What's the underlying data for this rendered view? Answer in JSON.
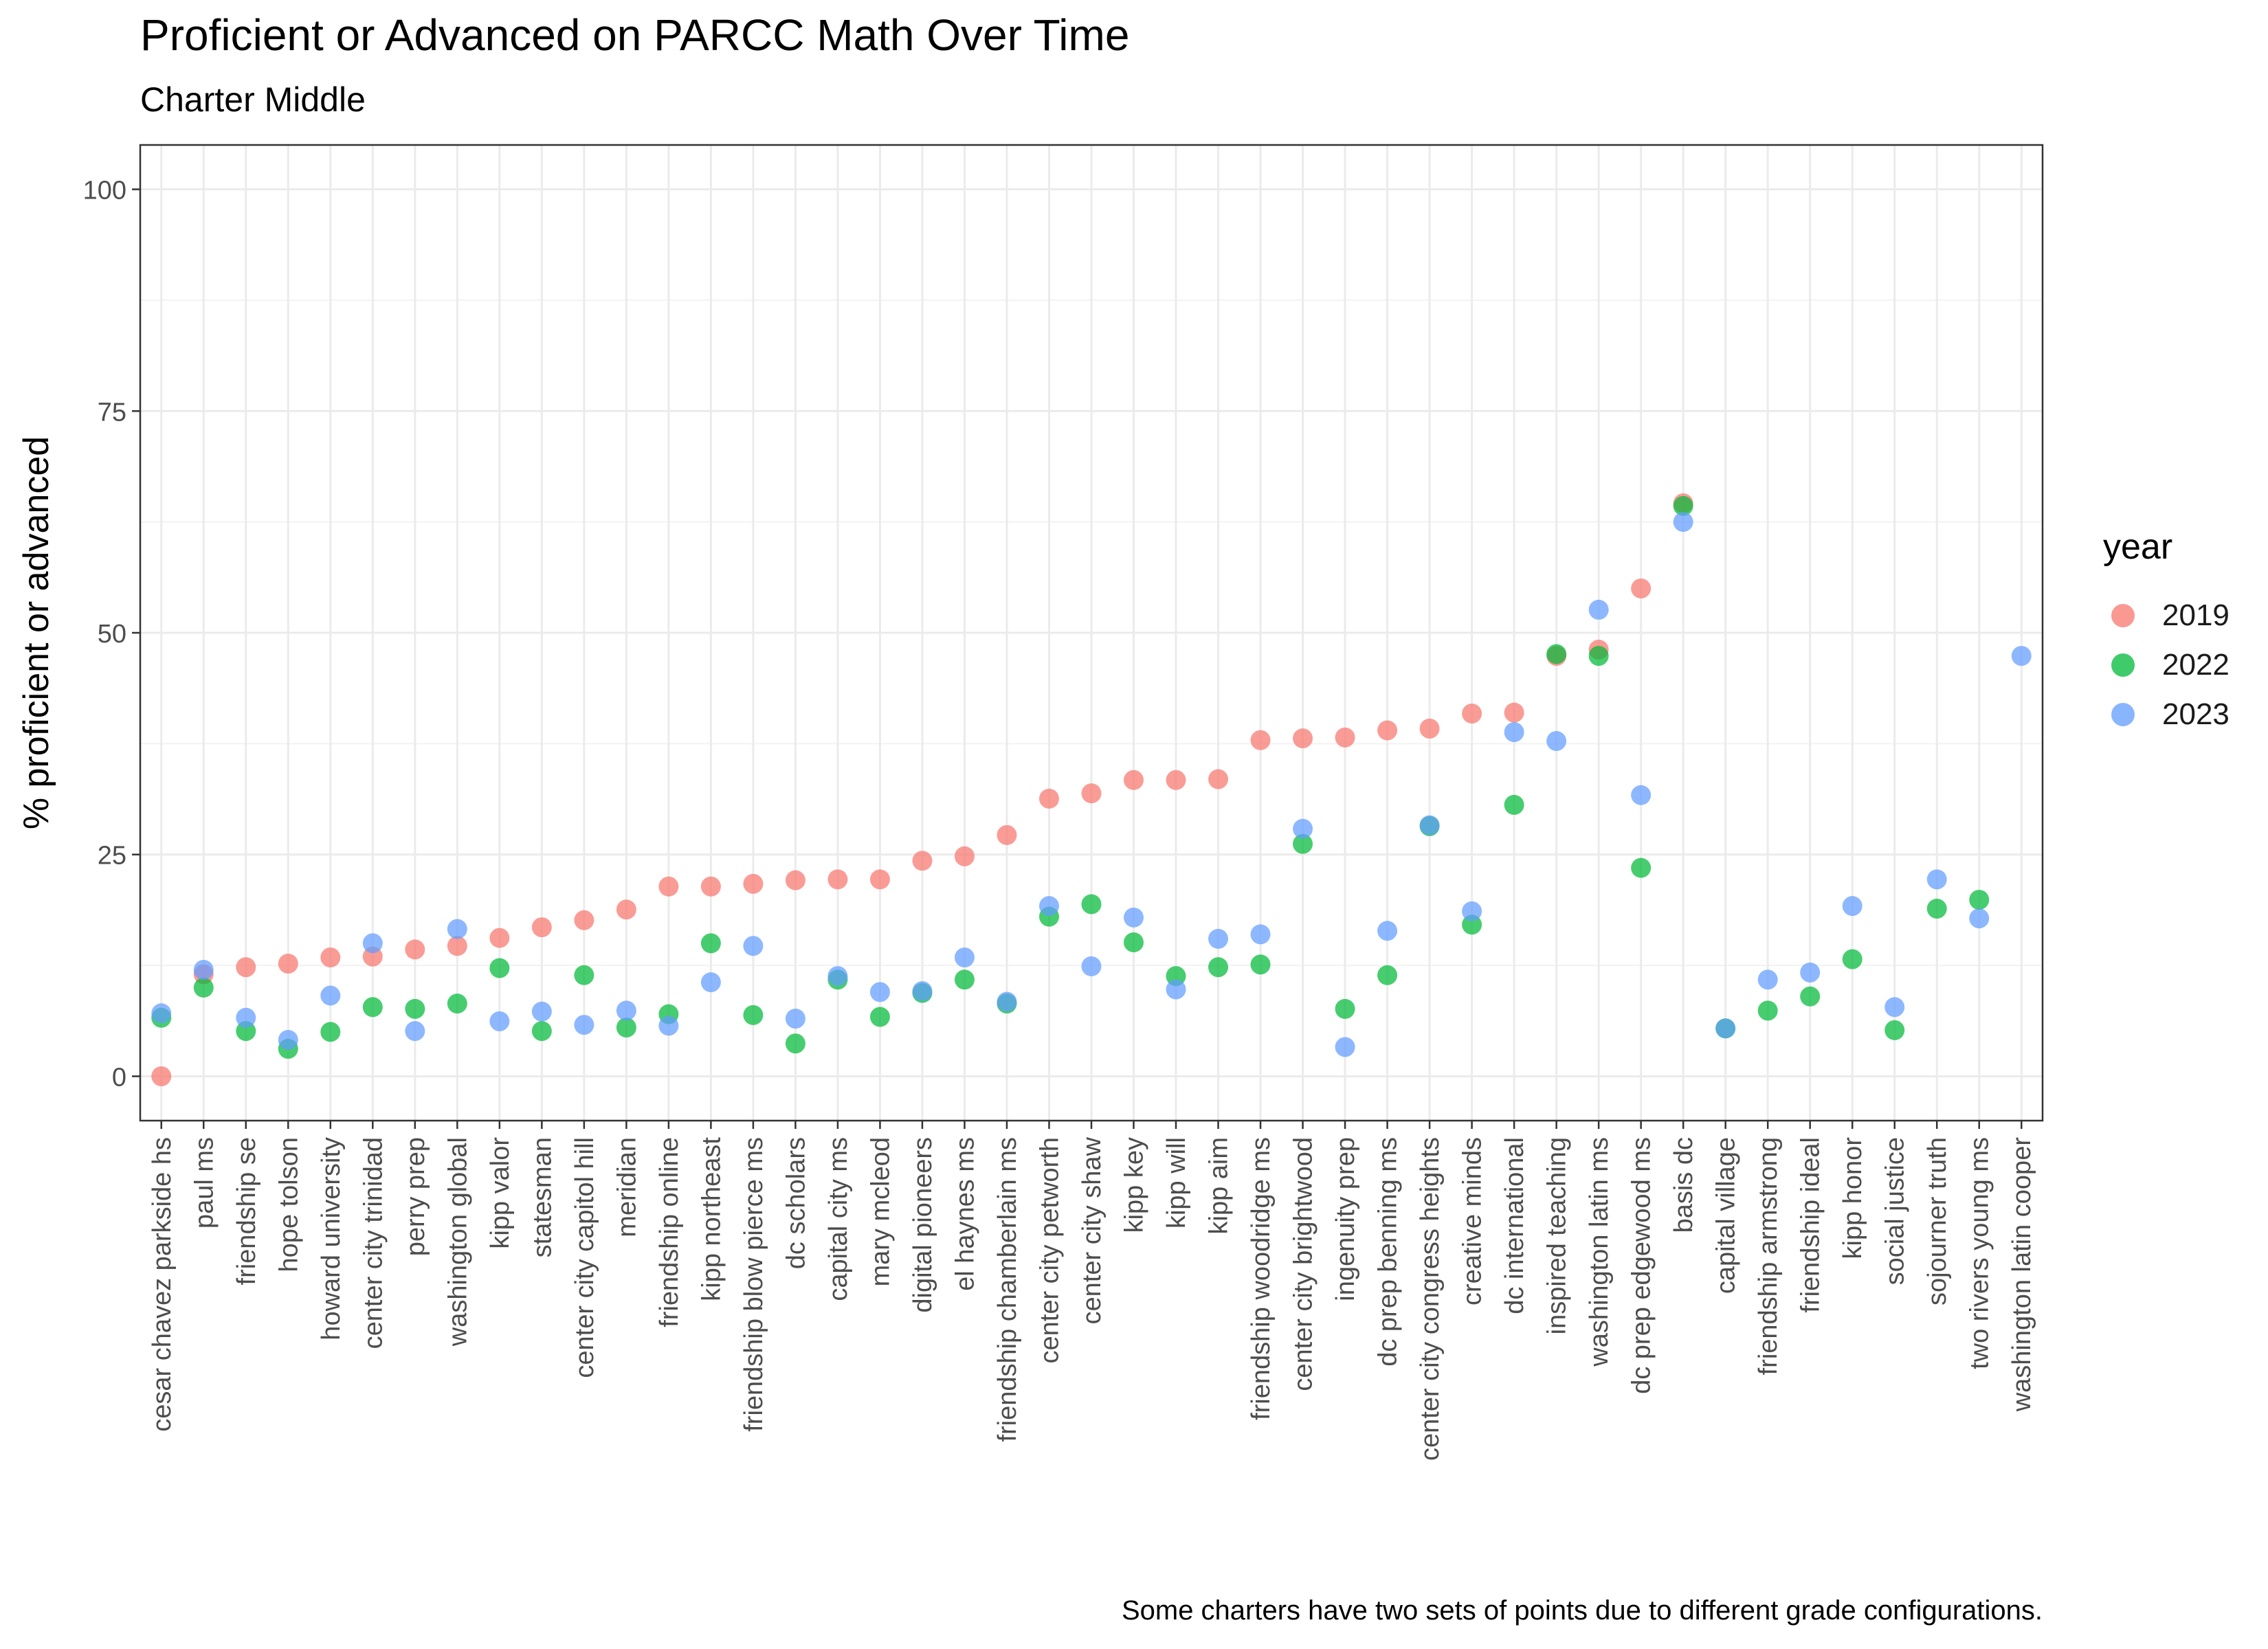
{
  "chart_data": {
    "type": "scatter",
    "title": "Proficient or Advanced on PARCC Math Over Time",
    "subtitle": "Charter Middle",
    "xlabel": "",
    "ylabel": "% proficient or advanced",
    "caption": "Some charters have two sets of points due to different grade configurations.",
    "ylim": [
      -5,
      105
    ],
    "yticks": [
      0,
      25,
      50,
      75,
      100
    ],
    "grid": true,
    "legend": {
      "title": "year",
      "placement": "right"
    },
    "categories": [
      "cesar chavez parkside hs",
      "paul ms",
      "friendship se",
      "hope tolson",
      "howard university",
      "center city trinidad",
      "perry prep",
      "washington global",
      "kipp valor",
      "statesman",
      "center city capitol hill",
      "meridian",
      "friendship online",
      "kipp northeast",
      "friendship blow pierce ms",
      "dc scholars",
      "capital city ms",
      "mary mcleod",
      "digital pioneers",
      "el haynes ms",
      "friendship chamberlain ms",
      "center city petworth",
      "center city shaw",
      "kipp key",
      "kipp will",
      "kipp aim",
      "friendship woodridge ms",
      "center city brightwood",
      "ingenuity prep",
      "dc prep benning ms",
      "center city congress heights",
      "creative minds",
      "dc international",
      "inspired teaching",
      "washington latin ms",
      "dc prep edgewood ms",
      "basis dc",
      "capital village",
      "friendship armstrong",
      "friendship ideal",
      "kipp honor",
      "social justice",
      "sojourner truth",
      "two rivers young ms",
      "washington latin cooper"
    ],
    "series": [
      {
        "name": "2019",
        "color": "#F8766D",
        "values": [
          0,
          11.5,
          12.3,
          12.7,
          13.4,
          13.5,
          14.3,
          14.7,
          15.6,
          16.8,
          17.6,
          18.8,
          21.4,
          21.4,
          21.7,
          22.1,
          22.2,
          22.2,
          24.3,
          24.8,
          27.2,
          31.3,
          31.9,
          33.4,
          33.4,
          33.5,
          37.9,
          38.1,
          38.2,
          39.0,
          39.2,
          40.9,
          41.0,
          47.4,
          48.1,
          55.0,
          64.6,
          null,
          null,
          null,
          null,
          null,
          null,
          null,
          null
        ]
      },
      {
        "name": "2022",
        "color": "#00BA38",
        "values": [
          6.6,
          10.0,
          5.1,
          3.1,
          5.0,
          7.8,
          7.6,
          8.2,
          12.2,
          5.1,
          11.4,
          5.5,
          7.0,
          15.0,
          6.9,
          3.7,
          10.9,
          6.7,
          9.4,
          10.9,
          8.2,
          18.0,
          19.4,
          15.1,
          11.3,
          12.3,
          12.6,
          26.2,
          7.6,
          11.4,
          28.2,
          17.1,
          30.6,
          47.6,
          47.4,
          23.5,
          64.3,
          5.4,
          7.4,
          9.0,
          13.2,
          5.2,
          18.9,
          19.9,
          null
        ]
      },
      {
        "name": "2023",
        "color": "#619CFF",
        "values": [
          7.1,
          12.0,
          6.6,
          4.1,
          9.1,
          15.0,
          5.1,
          16.6,
          6.2,
          7.3,
          5.8,
          7.4,
          5.7,
          10.6,
          14.7,
          6.5,
          11.3,
          9.5,
          9.6,
          13.4,
          8.4,
          19.2,
          12.4,
          17.9,
          9.8,
          15.5,
          16.0,
          27.9,
          3.3,
          16.4,
          28.3,
          18.6,
          38.8,
          37.8,
          52.6,
          31.7,
          62.5,
          5.4,
          10.9,
          11.7,
          19.2,
          7.8,
          22.2,
          17.8,
          47.4
        ]
      }
    ]
  }
}
